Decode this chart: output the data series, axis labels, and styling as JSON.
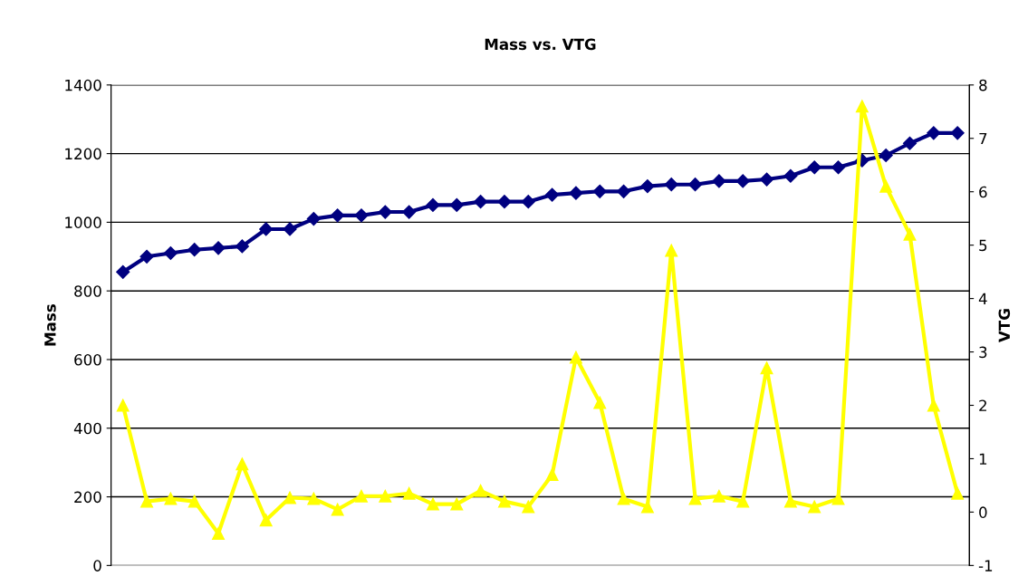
{
  "chart_data": {
    "type": "line",
    "title": "Mass vs. VTG",
    "ylabel": "Mass",
    "y2label": "VTG",
    "categories": [
      null,
      null,
      null,
      null,
      null,
      null,
      null,
      null,
      null,
      null,
      null,
      null,
      null,
      null,
      null,
      null,
      null,
      null,
      null,
      null,
      null,
      null,
      null,
      null,
      null,
      null,
      null,
      null,
      null,
      null,
      null,
      null,
      null,
      null,
      null,
      null
    ],
    "series": [
      {
        "color": "#000080",
        "marker": "diamond",
        "values": [
          855,
          900,
          910,
          920,
          925,
          930,
          980,
          980,
          1010,
          1020,
          1020,
          1030,
          1030,
          1050,
          1050,
          1060,
          1060,
          1060,
          1080,
          1085,
          1090,
          1090,
          1105,
          1110,
          1110,
          1120,
          1120,
          1125,
          1135,
          1160,
          1160,
          1180,
          1195,
          1230,
          1260,
          1260
        ]
      },
      {
        "color": "#ffff00",
        "marker": "triangle",
        "axis": "y2",
        "values": [
          2.0,
          0.2,
          0.25,
          0.2,
          -0.4,
          0.9,
          -0.15,
          0.27,
          0.25,
          0.05,
          0.3,
          0.3,
          0.35,
          0.15,
          0.15,
          0.4,
          0.2,
          0.1,
          0.7,
          2.9,
          2.05,
          0.25,
          0.1,
          4.9,
          0.25,
          0.3,
          0.2,
          2.7,
          0.2,
          0.1,
          0.25,
          7.6,
          6.1,
          5.2,
          2.0,
          0.35
        ]
      }
    ],
    "ylim": [
      0,
      1400
    ],
    "yticks": [
      0,
      200,
      400,
      600,
      800,
      1000,
      1200,
      1400
    ],
    "y2lim": [
      -1,
      8
    ],
    "y2ticks": [
      -1,
      0,
      1,
      2,
      3,
      4,
      5,
      6,
      7,
      8
    ],
    "grid": "y",
    "legend": false,
    "line_style": "solid"
  }
}
